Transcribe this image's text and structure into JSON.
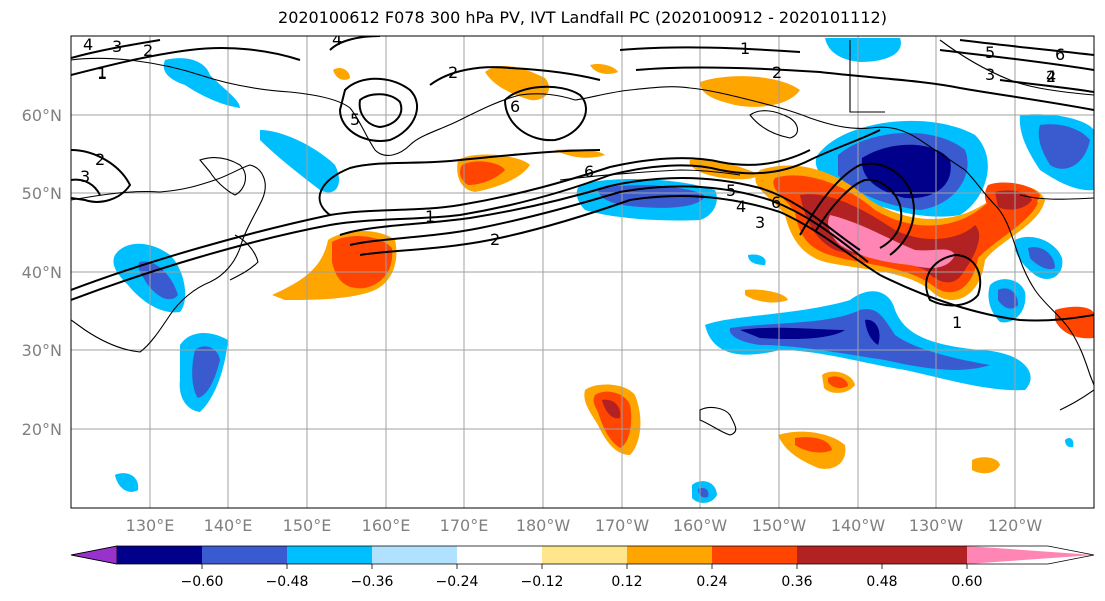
{
  "title": "2020100612 F078 300 hPa PV, IVT Landfall PC (2020100912 - 2020101112)",
  "map": {
    "lon_labels": [
      "130°E",
      "140°E",
      "150°E",
      "160°E",
      "170°E",
      "180°W",
      "170°W",
      "160°W",
      "150°W",
      "140°W",
      "130°W",
      "120°W"
    ],
    "lat_labels": [
      "60°N",
      "50°N",
      "40°N",
      "30°N",
      "20°N"
    ],
    "contour_labels": [
      "4",
      "3",
      "2",
      "1",
      "2",
      "4",
      "5",
      "6",
      "2",
      "3",
      "1",
      "1",
      "2",
      "5",
      "3",
      "4",
      "6",
      "6",
      "1",
      "2",
      "5",
      "4",
      "3",
      "6",
      "2",
      "1"
    ]
  },
  "colorbar": {
    "colors": [
      "#9932cc",
      "#00008b",
      "#3a5bd0",
      "#00bfff",
      "#b0e2ff",
      "#ffffff",
      "#ffe68a",
      "#ffa500",
      "#ff4500",
      "#b22222",
      "#ff85b4"
    ],
    "labels": [
      "−0.60",
      "−0.48",
      "−0.36",
      "−0.24",
      "−0.12",
      "0.12",
      "0.24",
      "0.36",
      "0.48",
      "0.60"
    ]
  }
}
